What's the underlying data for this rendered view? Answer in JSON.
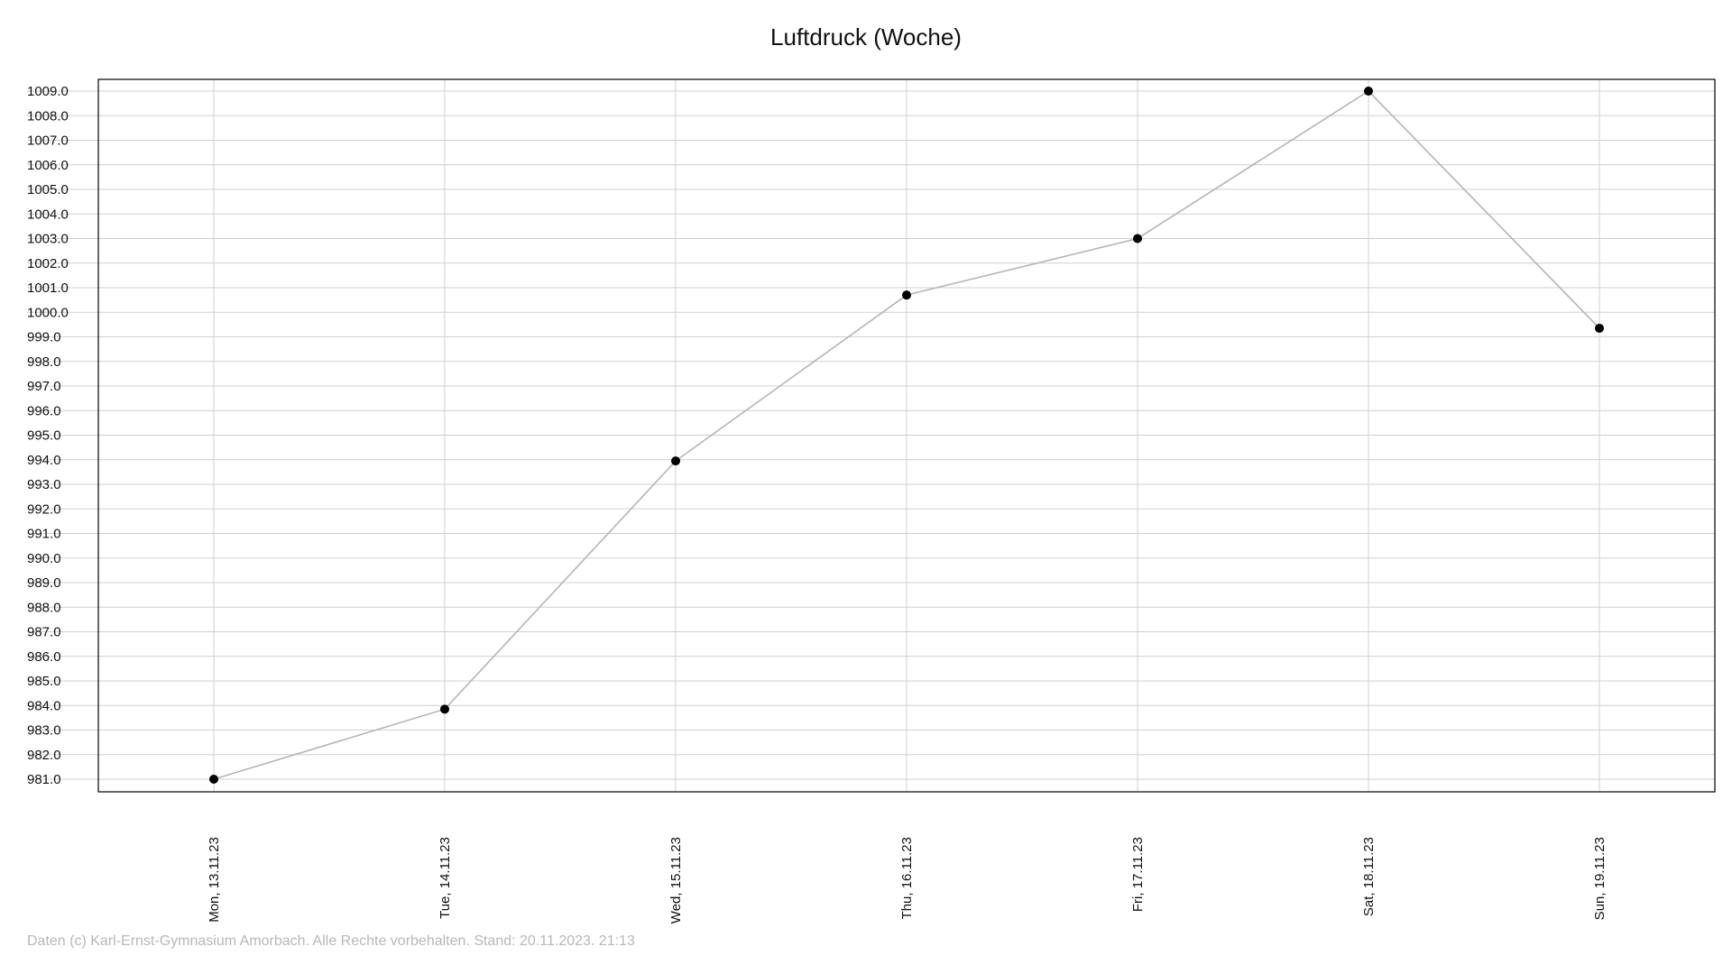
{
  "chart_data": {
    "type": "line",
    "title": "Luftdruck (Woche)",
    "xlabel": "",
    "ylabel": "",
    "categories": [
      "Mon, 13.11.23",
      "Tue, 14.11.23",
      "Wed, 15.11.23",
      "Thu, 16.11.23",
      "Fri, 17.11.23",
      "Sat, 18.11.23",
      "Sun, 19.11.23"
    ],
    "series": [
      {
        "values": [
          981.0,
          983.85,
          993.95,
          1000.7,
          1003.0,
          1009.0,
          999.35
        ]
      }
    ],
    "ylim": [
      981.0,
      1009.0
    ],
    "ytick_step": 1.0,
    "ytick_labels": [
      "981.0",
      "982.0",
      "983.0",
      "984.0",
      "985.0",
      "986.0",
      "987.0",
      "988.0",
      "989.0",
      "990.0",
      "991.0",
      "992.0",
      "993.0",
      "994.0",
      "995.0",
      "996.0",
      "997.0",
      "998.0",
      "999.0",
      "1000.0",
      "1001.0",
      "1002.0",
      "1003.0",
      "1004.0",
      "1005.0",
      "1006.0",
      "1007.0",
      "1008.0",
      "1009.0"
    ],
    "grid": true,
    "legend": "none",
    "colors": {
      "line": "#b5b5b5",
      "marker": "#000000",
      "grid": "#d0d0d0",
      "frame": "#000000"
    }
  },
  "footer": "Daten (c) Karl-Ernst-Gymnasium Amorbach. Alle Rechte vorbehalten. Stand: 20.11.2023. 21:13"
}
